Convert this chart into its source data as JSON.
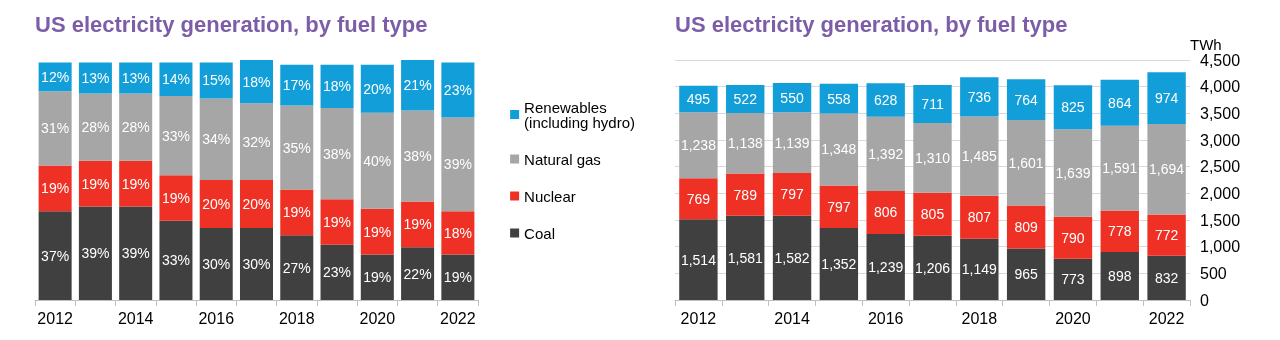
{
  "chart_data": [
    {
      "type": "bar",
      "title": "US electricity generation, by fuel type",
      "stacked": true,
      "legend": "right",
      "grid": false,
      "categories": [
        "2012",
        null,
        "2014",
        null,
        "2016",
        null,
        "2018",
        null,
        "2020",
        null,
        "2022"
      ],
      "series": [
        {
          "name": "Coal",
          "color": "#404040",
          "values": [
            37,
            39,
            39,
            33,
            30,
            30,
            27,
            23,
            19,
            22,
            19
          ],
          "value_labels": [
            "37%",
            "39%",
            "39%",
            "33%",
            "30%",
            "30%",
            "27%",
            "23%",
            "19%",
            "22%",
            "19%"
          ]
        },
        {
          "name": "Nuclear",
          "color": "#ee3124",
          "values": [
            19,
            19,
            19,
            19,
            20,
            20,
            19,
            19,
            19,
            19,
            18
          ],
          "value_labels": [
            "19%",
            "19%",
            "19%",
            "19%",
            "20%",
            "20%",
            "19%",
            "19%",
            "19%",
            "19%",
            "18%"
          ]
        },
        {
          "name": "Natural gas",
          "color": "#a6a6a6",
          "values": [
            31,
            28,
            28,
            33,
            34,
            32,
            35,
            38,
            40,
            38,
            39
          ],
          "value_labels": [
            "31%",
            "28%",
            "28%",
            "33%",
            "34%",
            "32%",
            "35%",
            "38%",
            "40%",
            "38%",
            "39%"
          ]
        },
        {
          "name": "Renewables (including hydro)",
          "color": "#129fd9",
          "values": [
            12,
            13,
            13,
            14,
            15,
            18,
            17,
            18,
            20,
            21,
            23
          ],
          "value_labels": [
            "12%",
            "13%",
            "13%",
            "14%",
            "15%",
            "18%",
            "17%",
            "18%",
            "20%",
            "21%",
            "23%"
          ]
        }
      ]
    },
    {
      "type": "bar",
      "title": "US electricity generation, by fuel type",
      "ylabel": "TWh",
      "stacked": true,
      "legend": false,
      "grid": "y",
      "categories": [
        "2012",
        null,
        "2014",
        null,
        "2016",
        null,
        "2018",
        null,
        "2020",
        null,
        "2022"
      ],
      "ylim": [
        0,
        4500
      ],
      "yticks": [
        0,
        {
          "value": 500,
          "label": "500"
        },
        {
          "value": 1000,
          "label": "1,000"
        },
        {
          "value": 1500,
          "label": "1,500"
        },
        {
          "value": 2000,
          "label": "2,000"
        },
        {
          "value": 2500,
          "label": "2,500"
        },
        {
          "value": 3000,
          "label": "3,000"
        },
        {
          "value": 3500,
          "label": "3,500"
        },
        {
          "value": 4000,
          "label": "4,000"
        },
        {
          "value": 4500,
          "label": "4,500"
        }
      ],
      "series": [
        {
          "color": "#404040",
          "values": [
            1514,
            1581,
            1582,
            1352,
            1239,
            1206,
            1149,
            965,
            773,
            898,
            832
          ],
          "value_labels": [
            "1,514",
            "1,581",
            "1,582",
            "1,352",
            "1,239",
            "1,206",
            "1,149",
            "965",
            "773",
            "898",
            "832"
          ]
        },
        {
          "color": "#ee3124",
          "values": [
            769,
            789,
            797,
            797,
            806,
            805,
            807,
            809,
            790,
            778,
            772
          ],
          "value_labels": [
            "769",
            "789",
            "797",
            "797",
            "806",
            "805",
            "807",
            "809",
            "790",
            "778",
            "772"
          ]
        },
        {
          "color": "#a6a6a6",
          "values": [
            1238,
            1138,
            1139,
            1348,
            1392,
            1310,
            1485,
            1601,
            1639,
            1591,
            1694
          ],
          "value_labels": [
            "1,238",
            "1,138",
            "1,139",
            "1,348",
            "1,392",
            "1,310",
            "1,485",
            "1,601",
            "1,639",
            "1,591",
            "1,694"
          ]
        },
        {
          "color": "#129fd9",
          "values": [
            495,
            522,
            550,
            558,
            628,
            711,
            736,
            764,
            825,
            864,
            974
          ],
          "value_labels": [
            "495",
            "522",
            "550",
            "558",
            "628",
            "711",
            "736",
            "764",
            "825",
            "864",
            "974"
          ]
        }
      ]
    }
  ]
}
